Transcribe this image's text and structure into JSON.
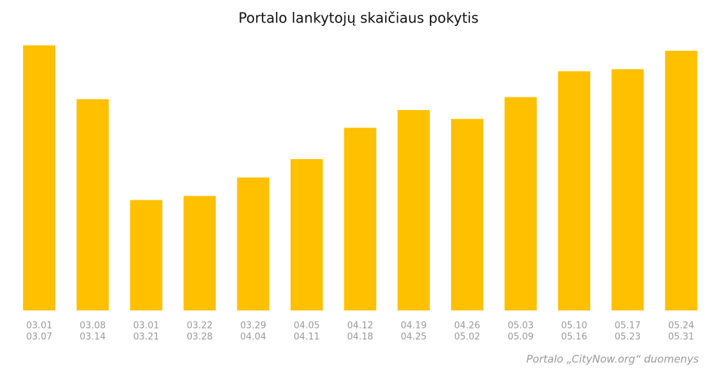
{
  "chart_data": {
    "type": "bar",
    "title": "Portalo lankytojų skaičiaus pokytis",
    "source": "Portalo „CityNow.org“ duomenys",
    "categories": [
      [
        "03.01",
        "03.07"
      ],
      [
        "03.08",
        "03.14"
      ],
      [
        "03.01",
        "03.21"
      ],
      [
        "03.22",
        "03.28"
      ],
      [
        "03.29",
        "04.04"
      ],
      [
        "04.05",
        "04.11"
      ],
      [
        "04.12",
        "04.18"
      ],
      [
        "04.19",
        "04.25"
      ],
      [
        "04.26",
        "05.02"
      ],
      [
        "05.03",
        "05.09"
      ],
      [
        "05.10",
        "05.16"
      ],
      [
        "05.17",
        "05.23"
      ],
      [
        "05.24",
        "05.31"
      ]
    ],
    "values": [
      389,
      310,
      162,
      168,
      195,
      222,
      268,
      294,
      281,
      313,
      351,
      354,
      381
    ],
    "color": "#ffc000",
    "ylim": [
      0,
      400
    ]
  }
}
